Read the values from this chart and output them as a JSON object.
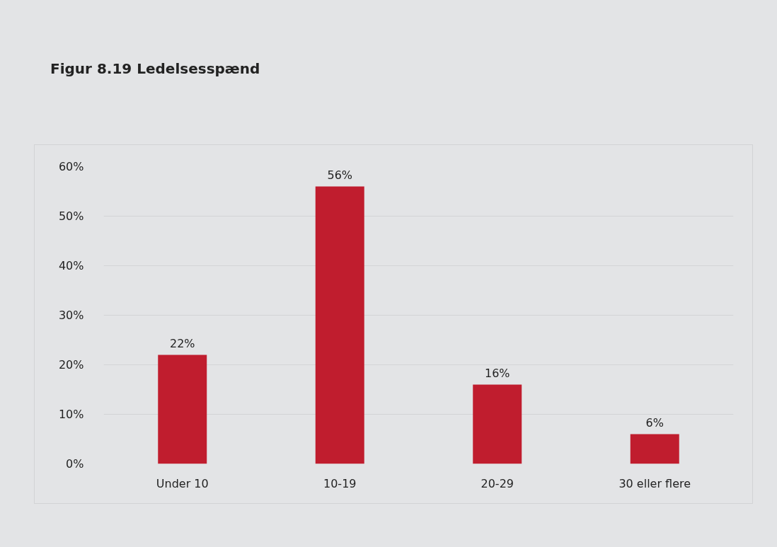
{
  "chart_data": {
    "type": "bar",
    "title": "Figur 8.19 Ledelsesspænd",
    "categories": [
      "Under 10",
      "10-19",
      "20-29",
      "30 eller flere"
    ],
    "values": [
      22,
      56,
      16,
      6
    ],
    "value_labels": [
      "22%",
      "56%",
      "16%",
      "6%"
    ],
    "color": "#c01d2e",
    "ylim": [
      0,
      60
    ],
    "yticks": [
      {
        "value": 0,
        "label": "0%"
      },
      {
        "value": 10,
        "label": "10%"
      },
      {
        "value": 20,
        "label": "20%"
      },
      {
        "value": 30,
        "label": "30%"
      },
      {
        "value": 40,
        "label": "40%"
      },
      {
        "value": 50,
        "label": "50%"
      },
      {
        "value": 60,
        "label": "60%"
      }
    ],
    "grid": "y"
  }
}
